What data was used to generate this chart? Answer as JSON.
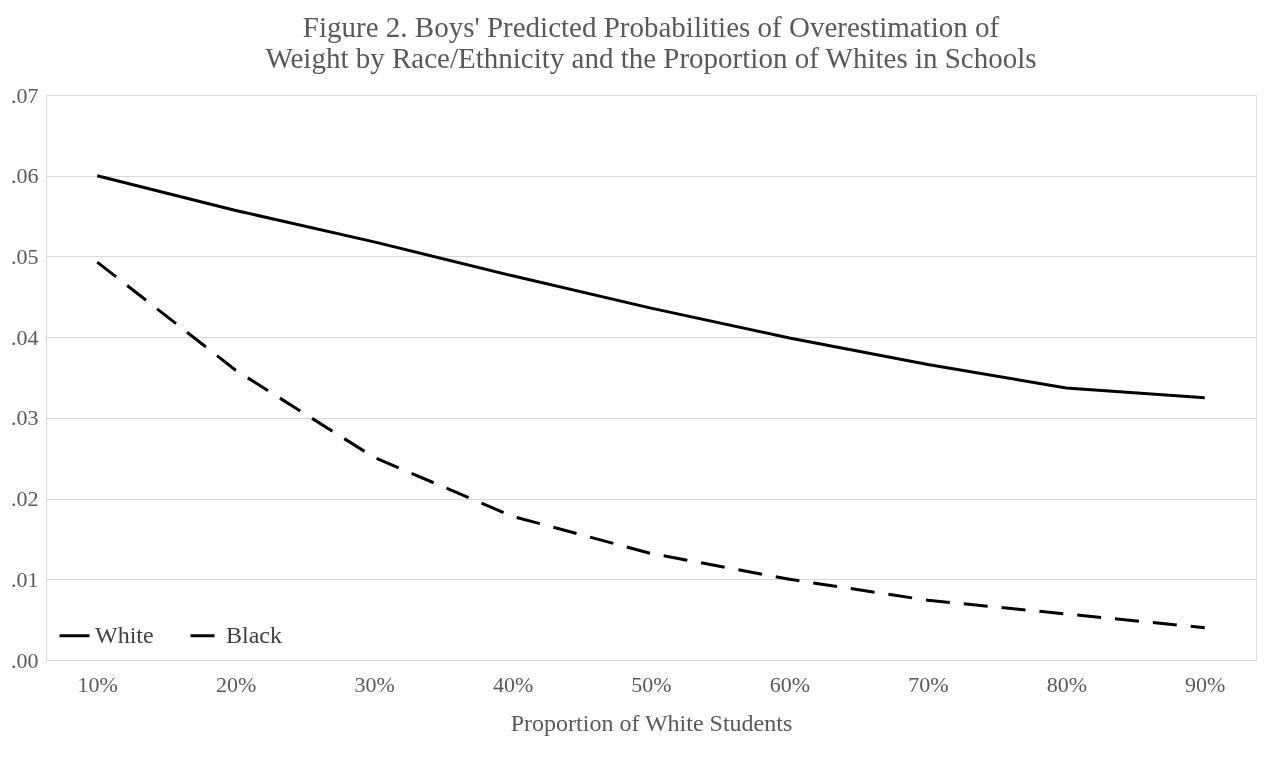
{
  "chart_data": {
    "type": "line",
    "title": "Figure 2. Boys' Predicted Probabilities of Overestimation of\nWeight by Race/Ethnicity and the Proportion of Whites in Schools",
    "xlabel": "Proportion of White Students",
    "categories": [
      "10%",
      "20%",
      "30%",
      "40%",
      "50%",
      "60%",
      "70%",
      "80%",
      "90%"
    ],
    "series": [
      {
        "name": "White",
        "color": "#000000",
        "line_style": "solid",
        "values": [
          0.06,
          0.0557,
          0.0518,
          0.0476,
          0.0436,
          0.0399,
          0.0366,
          0.0337,
          0.0325
        ]
      },
      {
        "name": "Black",
        "color": "#000000",
        "line_style": "dashed",
        "values": [
          0.0493,
          0.0359,
          0.0251,
          0.0178,
          0.0132,
          0.01,
          0.0074,
          0.0057,
          0.004
        ]
      }
    ],
    "ylim": [
      0,
      0.07
    ],
    "yticks": [
      {
        "value": 0,
        "label": ".00"
      },
      {
        "value": 0.01,
        "label": ".01"
      },
      {
        "value": 0.02,
        "label": ".02"
      },
      {
        "value": 0.03,
        "label": ".03"
      },
      {
        "value": 0.04,
        "label": ".04"
      },
      {
        "value": 0.05,
        "label": ".05"
      },
      {
        "value": 0.06,
        "label": ".06"
      },
      {
        "value": 0.07,
        "label": ".07"
      }
    ],
    "grid": "y",
    "legend": "bottom left",
    "marker": "none"
  }
}
